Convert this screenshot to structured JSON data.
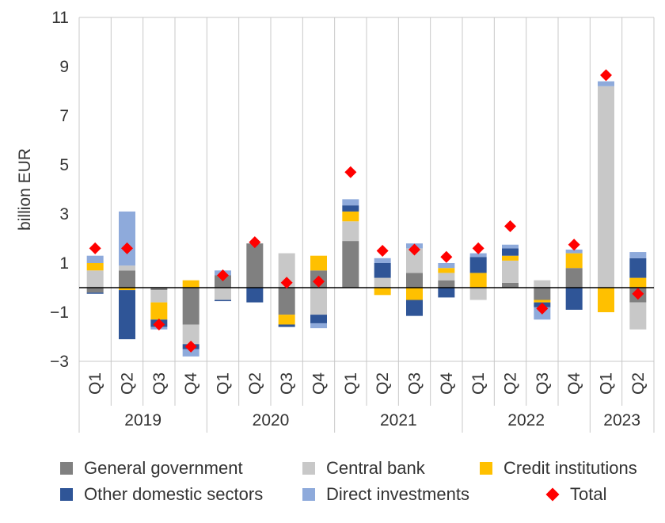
{
  "chart_data": {
    "type": "bar",
    "stacked": true,
    "ylabel": "billion EUR",
    "ylim": [
      -3,
      11
    ],
    "yticks": [
      "−3",
      "−1",
      "1",
      "3",
      "5",
      "7",
      "9",
      "11"
    ],
    "ytick_values": [
      -3,
      -1,
      1,
      3,
      5,
      7,
      9,
      11
    ],
    "grid": "vertical",
    "legend_position": "bottom",
    "categories": [
      "Q1",
      "Q2",
      "Q3",
      "Q4",
      "Q1",
      "Q2",
      "Q3",
      "Q4",
      "Q1",
      "Q2",
      "Q3",
      "Q4",
      "Q1",
      "Q2",
      "Q3",
      "Q4",
      "Q1",
      "Q2"
    ],
    "groups": [
      {
        "label": "2019",
        "count": 4
      },
      {
        "label": "2020",
        "count": 4
      },
      {
        "label": "2021",
        "count": 4
      },
      {
        "label": "2022",
        "count": 4
      },
      {
        "label": "2023",
        "count": 2
      }
    ],
    "series": [
      {
        "name": "General government",
        "color": "#808080",
        "values": [
          -0.2,
          0.7,
          -0.1,
          -1.5,
          0.5,
          1.8,
          -1.1,
          0.7,
          1.9,
          0.0,
          0.6,
          0.3,
          0.0,
          0.2,
          -0.5,
          0.8,
          0.0,
          -0.6
        ]
      },
      {
        "name": "Central bank",
        "color": "#c8c8c8",
        "values": [
          0.7,
          0.2,
          -0.5,
          -0.8,
          -0.5,
          0.0,
          1.4,
          -1.1,
          0.8,
          0.4,
          1.0,
          0.3,
          -0.5,
          0.9,
          0.3,
          0.0,
          8.2,
          -1.1
        ]
      },
      {
        "name": "Credit institutions",
        "color": "#ffc000",
        "values": [
          0.3,
          -0.1,
          -0.7,
          0.3,
          0.0,
          0.0,
          -0.4,
          0.6,
          0.4,
          -0.3,
          -0.5,
          0.2,
          0.6,
          0.2,
          -0.1,
          0.6,
          -1.0,
          0.4
        ]
      },
      {
        "name": "Other domestic sectors",
        "color": "#2f5597",
        "values": [
          -0.05,
          -2.0,
          -0.3,
          -0.2,
          -0.05,
          -0.6,
          -0.1,
          -0.35,
          0.25,
          0.6,
          -0.65,
          -0.4,
          0.65,
          0.3,
          -0.2,
          -0.9,
          0.0,
          0.8
        ]
      },
      {
        "name": "Direct investments",
        "color": "#8eaadb",
        "values": [
          0.3,
          2.2,
          -0.1,
          -0.3,
          0.2,
          0.0,
          0.0,
          -0.2,
          0.25,
          0.2,
          0.2,
          0.2,
          0.15,
          0.15,
          -0.5,
          0.15,
          0.2,
          0.25
        ]
      }
    ],
    "total": {
      "name": "Total",
      "color": "#ff0000",
      "values": [
        1.6,
        1.6,
        -1.5,
        -2.4,
        0.5,
        1.85,
        0.2,
        0.25,
        4.7,
        1.5,
        1.55,
        1.25,
        1.6,
        2.5,
        -0.85,
        1.75,
        8.65,
        -0.25
      ]
    }
  },
  "legend": [
    {
      "label": "General government",
      "color": "#808080",
      "kind": "square"
    },
    {
      "label": "Central bank",
      "color": "#c8c8c8",
      "kind": "square"
    },
    {
      "label": "Credit institutions",
      "color": "#ffc000",
      "kind": "square"
    },
    {
      "label": "Other domestic sectors",
      "color": "#2f5597",
      "kind": "square"
    },
    {
      "label": "Direct investments",
      "color": "#8eaadb",
      "kind": "square"
    },
    {
      "label": "Total",
      "color": "#ff0000",
      "kind": "diamond"
    }
  ]
}
